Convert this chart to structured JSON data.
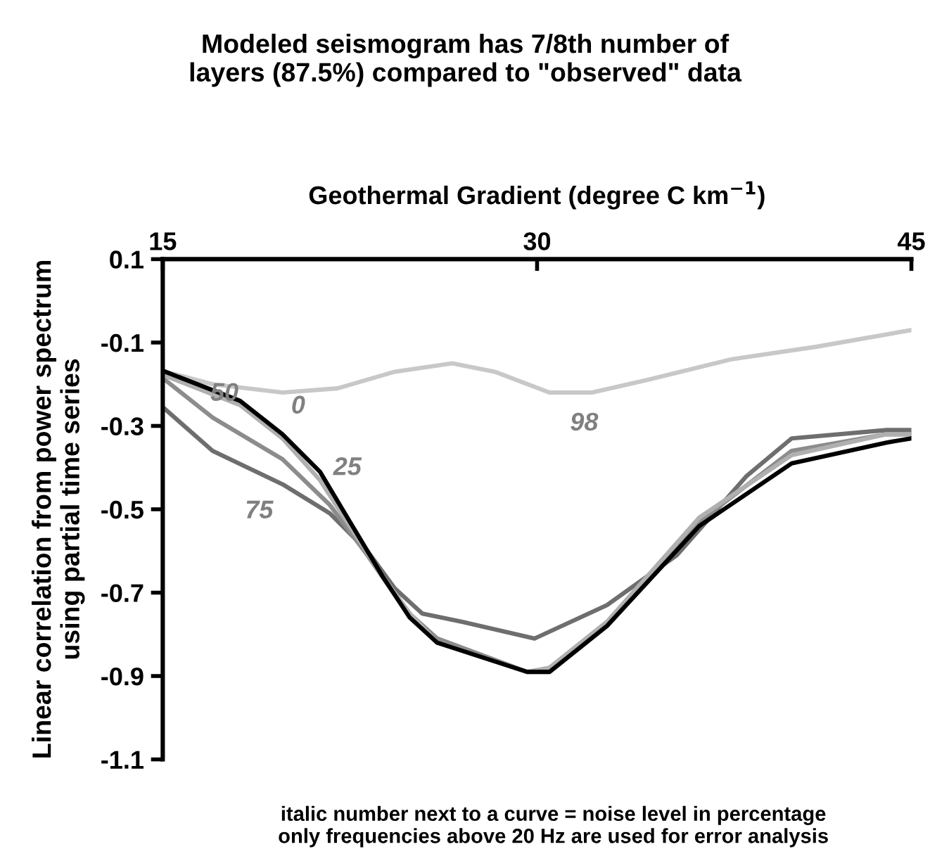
{
  "chart_data": {
    "type": "line",
    "title": "Modeled seismogram has 7/8th number of\nlayers (87.5%) compared to \"observed\" data",
    "xlabel": "Geothermal Gradient (degree C km$^{−1}$)",
    "ylabel": "Linear correlation from power spectrum\nusing partial time series",
    "xlim": [
      15,
      45
    ],
    "xticks": [
      15,
      30,
      45
    ],
    "ylim": [
      -1.1,
      0.1
    ],
    "yticks": [
      0.1,
      -0.1,
      -0.3,
      -0.5,
      -0.7,
      -0.9,
      -1.1
    ],
    "grid": false,
    "legend": false,
    "marker": "none",
    "line_style": "solid",
    "series": [
      {
        "color": "#c8c8c8",
        "x": [
          15.1,
          17,
          19.8,
          22,
          24.3,
          26.6,
          28.3,
          30.5,
          32.2,
          34.4,
          37.8,
          41.2,
          45
        ],
        "values": [
          -0.17,
          -0.2,
          -0.22,
          -0.21,
          -0.17,
          -0.15,
          -0.17,
          -0.22,
          -0.22,
          -0.19,
          -0.14,
          -0.11,
          -0.07
        ]
      },
      {
        "color": "#6e6e6e",
        "x": [
          15.1,
          17,
          19.8,
          21.7,
          23.2,
          24.3,
          25.4,
          27,
          29.9,
          32.8,
          35.6,
          38.4,
          40.2,
          44,
          45
        ],
        "values": [
          -0.26,
          -0.36,
          -0.44,
          -0.51,
          -0.6,
          -0.69,
          -0.75,
          -0.77,
          -0.81,
          -0.73,
          -0.61,
          -0.42,
          -0.33,
          -0.31,
          -0.31
        ]
      },
      {
        "color": "#8c8c8c",
        "x": [
          15.1,
          17,
          19.8,
          21.7,
          23.2,
          24.7,
          26,
          29.6,
          30.5,
          32.8,
          36.5,
          40.2,
          44,
          45
        ],
        "values": [
          -0.19,
          -0.28,
          -0.38,
          -0.49,
          -0.61,
          -0.74,
          -0.81,
          -0.89,
          -0.89,
          -0.78,
          -0.53,
          -0.36,
          -0.32,
          -0.32
        ]
      },
      {
        "color": "#b0b0b0",
        "x": [
          15.1,
          18.1,
          19.8,
          21.3,
          22.6,
          23.8,
          24.9,
          26,
          29.6,
          30.5,
          32.8,
          36.5,
          40.2,
          44,
          45
        ],
        "values": [
          -0.18,
          -0.25,
          -0.33,
          -0.43,
          -0.55,
          -0.66,
          -0.75,
          -0.82,
          -0.89,
          -0.88,
          -0.77,
          -0.52,
          -0.37,
          -0.32,
          -0.32
        ]
      },
      {
        "color": "#000000",
        "x": [
          15.1,
          18.1,
          19.8,
          21.3,
          22.6,
          23.8,
          24.9,
          26,
          29.6,
          30.5,
          32.8,
          36.5,
          40.2,
          44,
          45
        ],
        "values": [
          -0.17,
          -0.24,
          -0.32,
          -0.41,
          -0.54,
          -0.66,
          -0.76,
          -0.82,
          -0.89,
          -0.89,
          -0.78,
          -0.54,
          -0.39,
          -0.34,
          -0.33
        ]
      }
    ],
    "annotations": [
      {
        "text": "0",
        "x": 19.8,
        "y": -0.32
      },
      {
        "text": "25",
        "x": 21.3,
        "y": -0.43
      },
      {
        "text": "50",
        "x": 17,
        "y": -0.28
      },
      {
        "text": "75",
        "x": 19.8,
        "y": -0.44
      },
      {
        "text": "98",
        "x": 32.2,
        "y": -0.22
      },
      "italic number next to a curve = noise level in percentage\nonly frequencies above 20 Hz are used for error analysis"
    ]
  }
}
